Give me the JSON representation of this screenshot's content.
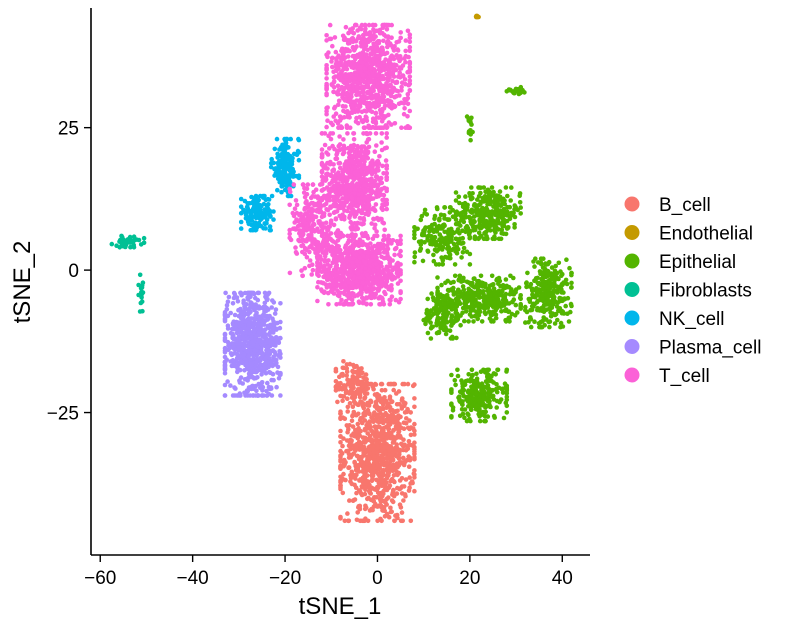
{
  "chart_data": {
    "type": "scatter",
    "title": "",
    "xlabel": "tSNE_1",
    "ylabel": "tSNE_2",
    "xlim": [
      -62,
      46
    ],
    "ylim": [
      -50,
      46
    ],
    "x_ticks": [
      -60,
      -40,
      -20,
      0,
      20,
      40
    ],
    "x_tick_labels": [
      "−60",
      "−40",
      "−20",
      "0",
      "20",
      "40"
    ],
    "y_ticks": [
      -25,
      0,
      25
    ],
    "y_tick_labels": [
      "−25",
      "0",
      "25"
    ],
    "grid": false,
    "legend_position": "right",
    "series": [
      {
        "name": "B_cell",
        "color": "#F8766D",
        "clusters": [
          {
            "cx": 0,
            "cy": -32,
            "rx": 8,
            "ry": 12,
            "n": 900
          },
          {
            "cx": -5,
            "cy": -20,
            "rx": 4,
            "ry": 4,
            "n": 120
          }
        ]
      },
      {
        "name": "Endothelial",
        "color": "#C49A00",
        "clusters": [
          {
            "cx": 21.5,
            "cy": 44.5,
            "rx": 0.6,
            "ry": 0.3,
            "n": 8
          }
        ]
      },
      {
        "name": "Epithelial",
        "color": "#53B400",
        "clusters": [
          {
            "cx": 24,
            "cy": 10,
            "rx": 7,
            "ry": 4.5,
            "n": 320
          },
          {
            "cx": 14,
            "cy": 6,
            "rx": 6,
            "ry": 5,
            "n": 200
          },
          {
            "cx": 22,
            "cy": -5,
            "rx": 9,
            "ry": 4,
            "n": 360
          },
          {
            "cx": 37,
            "cy": -4,
            "rx": 5,
            "ry": 6,
            "n": 260
          },
          {
            "cx": 14,
            "cy": -8,
            "rx": 4,
            "ry": 4,
            "n": 120
          },
          {
            "cx": 22,
            "cy": -22,
            "rx": 6,
            "ry": 4.5,
            "n": 260
          },
          {
            "cx": 30,
            "cy": 31.5,
            "rx": 2,
            "ry": 0.6,
            "n": 25
          },
          {
            "cx": 20,
            "cy": 25,
            "rx": 0.6,
            "ry": 2.2,
            "n": 15
          }
        ]
      },
      {
        "name": "Fibroblasts",
        "color": "#00C094",
        "clusters": [
          {
            "cx": -54,
            "cy": 5,
            "rx": 3.5,
            "ry": 1,
            "n": 40
          },
          {
            "cx": -51,
            "cy": -4,
            "rx": 0.7,
            "ry": 3.5,
            "n": 18
          }
        ]
      },
      {
        "name": "NK_cell",
        "color": "#00B6EB",
        "clusters": [
          {
            "cx": -20,
            "cy": 18,
            "rx": 3,
            "ry": 5,
            "n": 160
          },
          {
            "cx": -26,
            "cy": 10,
            "rx": 3.5,
            "ry": 3,
            "n": 140
          }
        ]
      },
      {
        "name": "Plasma_cell",
        "color": "#A58AFF",
        "clusters": [
          {
            "cx": -27,
            "cy": -13,
            "rx": 6,
            "ry": 9,
            "n": 700
          }
        ]
      },
      {
        "name": "T_cell",
        "color": "#FB61D7",
        "clusters": [
          {
            "cx": -2,
            "cy": 34,
            "rx": 9,
            "ry": 9,
            "n": 900
          },
          {
            "cx": -5,
            "cy": 15,
            "rx": 7,
            "ry": 9,
            "n": 700
          },
          {
            "cx": -4,
            "cy": 0,
            "rx": 9,
            "ry": 6,
            "n": 800
          },
          {
            "cx": -14,
            "cy": 7,
            "rx": 5,
            "ry": 8,
            "n": 250
          }
        ]
      }
    ]
  }
}
